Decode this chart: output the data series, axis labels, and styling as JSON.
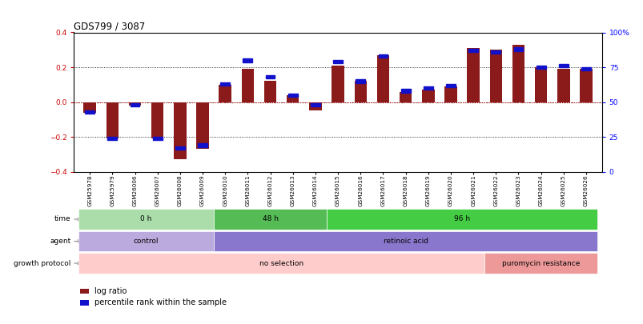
{
  "title": "GDS799 / 3087",
  "samples": [
    "GSM25978",
    "GSM25979",
    "GSM26006",
    "GSM26007",
    "GSM26008",
    "GSM26009",
    "GSM26010",
    "GSM26011",
    "GSM26012",
    "GSM26013",
    "GSM26014",
    "GSM26015",
    "GSM26016",
    "GSM26017",
    "GSM26018",
    "GSM26019",
    "GSM26020",
    "GSM26021",
    "GSM26022",
    "GSM26023",
    "GSM26024",
    "GSM26025",
    "GSM26026"
  ],
  "log_ratio": [
    -0.06,
    -0.21,
    -0.02,
    -0.21,
    -0.33,
    -0.27,
    0.1,
    0.19,
    0.12,
    0.04,
    -0.05,
    0.21,
    0.12,
    0.27,
    0.06,
    0.07,
    0.09,
    0.31,
    0.3,
    0.33,
    0.2,
    0.19,
    0.19
  ],
  "percentile": [
    43,
    24,
    48,
    24,
    17,
    19,
    63,
    80,
    68,
    55,
    48,
    79,
    65,
    83,
    58,
    60,
    62,
    87,
    86,
    88,
    75,
    76,
    74
  ],
  "ylim_left": [
    -0.4,
    0.4
  ],
  "ylim_right": [
    0,
    100
  ],
  "yticks_left": [
    -0.4,
    -0.2,
    0.0,
    0.2,
    0.4
  ],
  "yticks_right": [
    0,
    25,
    50,
    75,
    100
  ],
  "bar_color": "#8B1A1A",
  "marker_color": "#1111CC",
  "zero_line_color": "#CC0000",
  "time_groups": [
    {
      "label": "0 h",
      "start": 0,
      "end": 5,
      "color": "#AADDAA"
    },
    {
      "label": "48 h",
      "start": 6,
      "end": 10,
      "color": "#55BB55"
    },
    {
      "label": "96 h",
      "start": 11,
      "end": 22,
      "color": "#44CC44"
    }
  ],
  "agent_groups": [
    {
      "label": "control",
      "start": 0,
      "end": 5,
      "color": "#BBAADD"
    },
    {
      "label": "retinoic acid",
      "start": 6,
      "end": 22,
      "color": "#8877CC"
    }
  ],
  "growth_groups": [
    {
      "label": "no selection",
      "start": 0,
      "end": 17,
      "color": "#FFCCCC"
    },
    {
      "label": "puromycin resistance",
      "start": 18,
      "end": 22,
      "color": "#EE9999"
    }
  ],
  "row_labels": [
    "time",
    "agent",
    "growth protocol"
  ],
  "legend": [
    {
      "label": "log ratio",
      "color": "#8B1A1A"
    },
    {
      "label": "percentile rank within the sample",
      "color": "#1111CC"
    }
  ]
}
